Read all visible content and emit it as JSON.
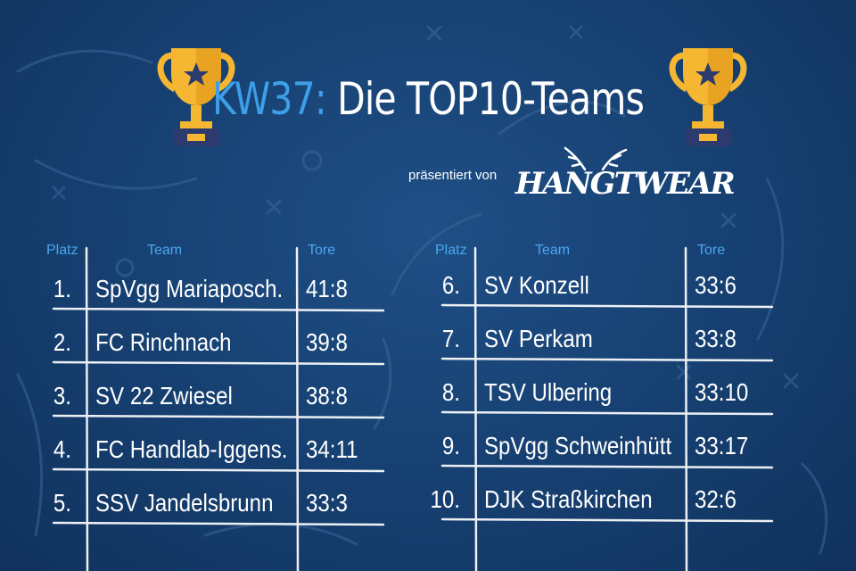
{
  "title": {
    "accent": "KW37",
    "colon": ":",
    "main": " Die TOP10-Teams"
  },
  "sponsor": {
    "presents": "präsentiert von",
    "logo_text": "HANGTWEAR"
  },
  "headers": {
    "platz": "Platz",
    "team": "Team",
    "tore": "Tore"
  },
  "left_table": [
    {
      "rank": "1.",
      "team": "SpVgg Mariaposch.",
      "goals": "41:8"
    },
    {
      "rank": "2.",
      "team": "FC Rinchnach",
      "goals": "39:8"
    },
    {
      "rank": "3.",
      "team": "SV 22 Zwiesel",
      "goals": "38:8"
    },
    {
      "rank": "4.",
      "team": "FC Handlab-Iggens.",
      "goals": "34:11"
    },
    {
      "rank": "5.",
      "team": "SSV Jandelsbrunn",
      "goals": "33:3"
    }
  ],
  "right_table": [
    {
      "rank": "6.",
      "team": "SV Konzell",
      "goals": "33:6"
    },
    {
      "rank": "7.",
      "team": "SV Perkam",
      "goals": "33:8"
    },
    {
      "rank": "8.",
      "team": "TSV Ulbering",
      "goals": "33:10"
    },
    {
      "rank": "9.",
      "team": "SpVgg Schweinhütt",
      "goals": "33:17"
    },
    {
      "rank": "10.",
      "team": "DJK Straßkirchen",
      "goals": "32:6"
    }
  ],
  "colors": {
    "background": "#163f70",
    "accent": "#3d9fe8",
    "trophy_gold": "#f5b731",
    "trophy_base": "#2c3a6e"
  },
  "icons": [
    "trophy-icon",
    "star-icon"
  ]
}
